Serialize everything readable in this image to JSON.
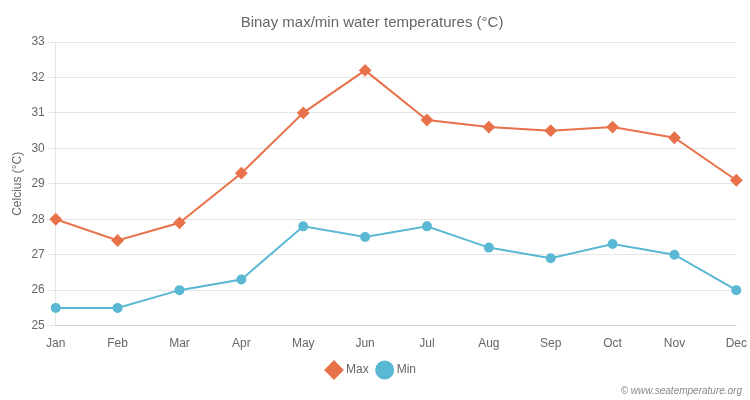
{
  "chart_data": {
    "type": "line",
    "title": "Binay max/min water temperatures (°C)",
    "ylabel": "Celcius (°C)",
    "categories": [
      "Jan",
      "Feb",
      "Mar",
      "Apr",
      "May",
      "Jun",
      "Jul",
      "Aug",
      "Sep",
      "Oct",
      "Nov",
      "Dec"
    ],
    "series": [
      {
        "name": "Max",
        "color": "#e8724a",
        "marker": "diamond",
        "values": [
          28.0,
          27.4,
          27.9,
          29.3,
          31.0,
          32.2,
          30.8,
          30.6,
          30.5,
          30.6,
          30.3,
          29.1
        ]
      },
      {
        "name": "Min",
        "color": "#5ab8d4",
        "marker": "circle",
        "values": [
          25.5,
          25.5,
          26.0,
          26.3,
          27.8,
          27.5,
          27.8,
          27.2,
          26.9,
          27.3,
          27.0,
          26.0
        ]
      }
    ],
    "ylim": [
      25,
      33
    ],
    "yticks": [
      25,
      26,
      27,
      28,
      29,
      30,
      31,
      32,
      33
    ],
    "grid": true,
    "legend": "bottom",
    "annotations": [
      "© www.seatemperature.org"
    ]
  }
}
